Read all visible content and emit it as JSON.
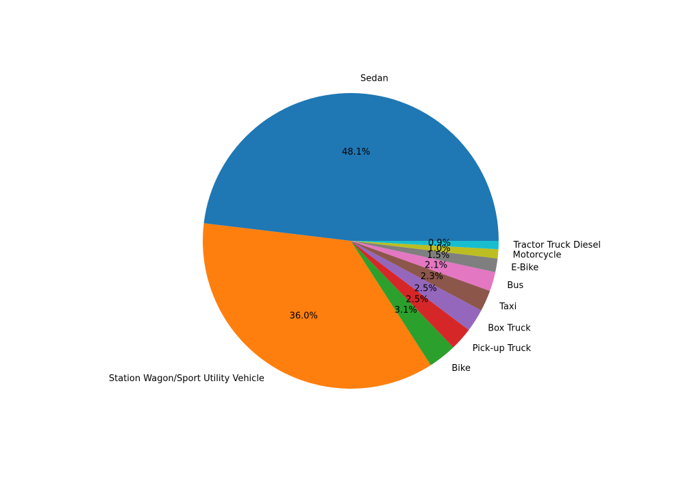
{
  "chart_data": {
    "type": "pie",
    "categories": [
      "Sedan",
      "Station Wagon/Sport Utility Vehicle",
      "Bike",
      "Pick-up Truck",
      "Box Truck",
      "Taxi",
      "Bus",
      "E-Bike",
      "Motorcycle",
      "Tractor Truck Diesel"
    ],
    "values": [
      48.1,
      36.0,
      3.1,
      2.5,
      2.5,
      2.3,
      2.1,
      1.5,
      1.0,
      0.9
    ],
    "percent_labels": [
      "48.1%",
      "36.0%",
      "3.1%",
      "2.5%",
      "2.5%",
      "2.3%",
      "2.1%",
      "1.5%",
      "1.0%",
      "0.9%"
    ],
    "colors": [
      "#1f77b4",
      "#ff7f0e",
      "#2ca02c",
      "#d62728",
      "#9467bd",
      "#8c564b",
      "#e377c2",
      "#7f7f7f",
      "#bcbd22",
      "#17becf"
    ],
    "start_angle_deg": 0,
    "direction": "counterclockwise",
    "legend": "none",
    "title": ""
  }
}
